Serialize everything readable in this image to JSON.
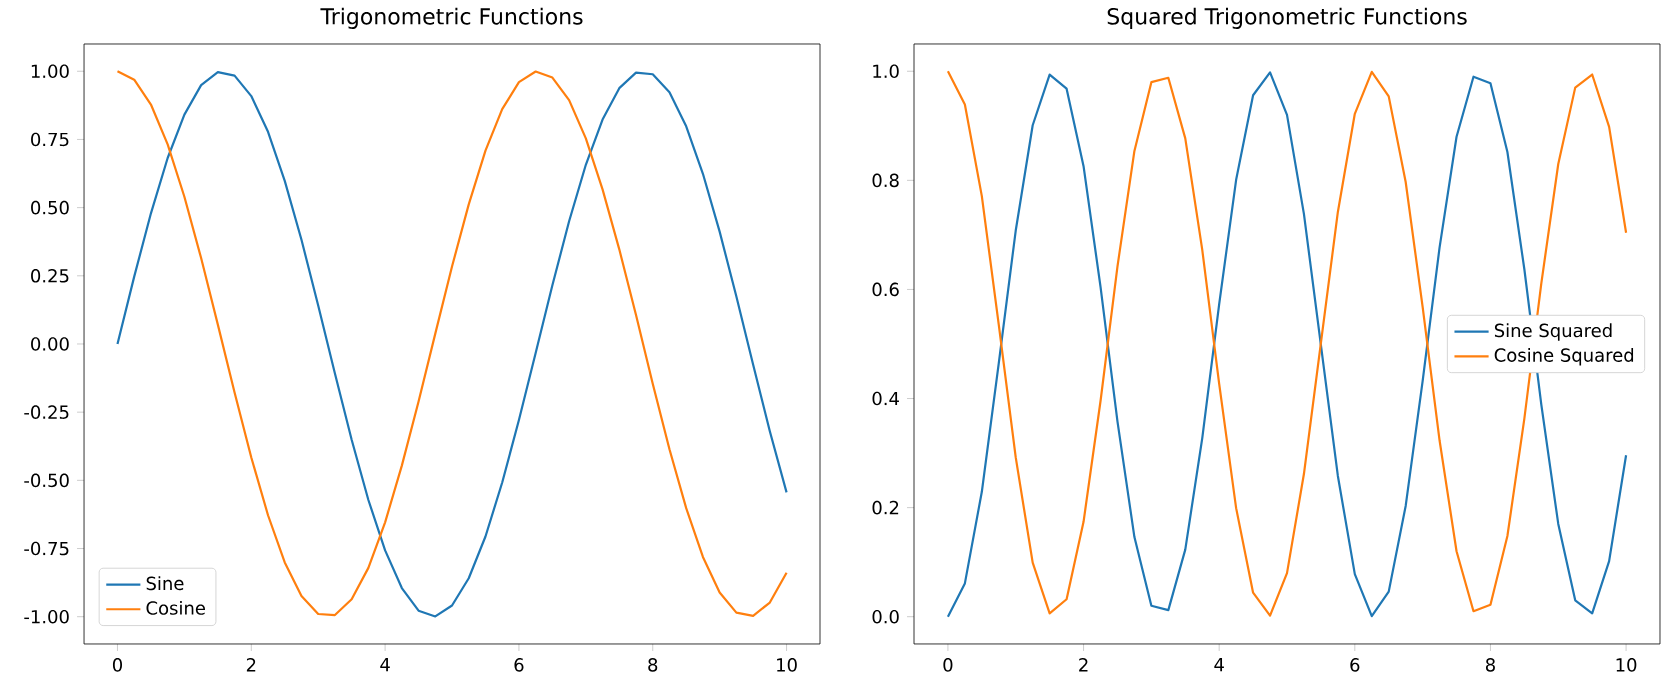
{
  "chart_data": [
    {
      "type": "line",
      "title": "Trigonometric Functions",
      "x": [
        0,
        0.25,
        0.5,
        0.75,
        1,
        1.25,
        1.5,
        1.75,
        2,
        2.25,
        2.5,
        2.75,
        3,
        3.25,
        3.5,
        3.75,
        4,
        4.25,
        4.5,
        4.75,
        5,
        5.25,
        5.5,
        5.75,
        6,
        6.25,
        6.5,
        6.75,
        7,
        7.25,
        7.5,
        7.75,
        8,
        8.25,
        8.5,
        8.75,
        9,
        9.25,
        9.5,
        9.75,
        10
      ],
      "series": [
        {
          "name": "Sine",
          "color": "#1f77b4",
          "values": [
            0,
            0.247,
            0.479,
            0.682,
            0.841,
            0.949,
            0.997,
            0.984,
            0.909,
            0.778,
            0.598,
            0.382,
            0.141,
            -0.108,
            -0.351,
            -0.572,
            -0.757,
            -0.895,
            -0.978,
            -0.999,
            -0.959,
            -0.859,
            -0.706,
            -0.508,
            -0.279,
            -0.033,
            0.215,
            0.45,
            0.657,
            0.823,
            0.938,
            0.995,
            0.989,
            0.923,
            0.798,
            0.624,
            0.412,
            0.174,
            -0.075,
            -0.32,
            -0.544
          ]
        },
        {
          "name": "Cosine",
          "color": "#ff7f0e",
          "values": [
            1,
            0.969,
            0.878,
            0.732,
            0.54,
            0.315,
            0.071,
            -0.178,
            -0.416,
            -0.628,
            -0.801,
            -0.924,
            -0.99,
            -0.994,
            -0.936,
            -0.821,
            -0.654,
            -0.446,
            -0.211,
            0.038,
            0.284,
            0.512,
            0.709,
            0.861,
            0.96,
            0.999,
            0.977,
            0.894,
            0.754,
            0.567,
            0.347,
            0.106,
            -0.146,
            -0.386,
            -0.602,
            -0.781,
            -0.911,
            -0.985,
            -0.997,
            -0.948,
            -0.839
          ]
        }
      ],
      "xlim": [
        -0.5,
        10.5
      ],
      "ylim": [
        -1.1,
        1.1
      ],
      "xticks": [
        0,
        2,
        4,
        6,
        8,
        10
      ],
      "yticks": [
        {
          "value": -1,
          "label": "-1.00"
        },
        {
          "value": -0.75,
          "label": "-0.75"
        },
        {
          "value": -0.5,
          "label": "-0.50"
        },
        {
          "value": -0.25,
          "label": "-0.25"
        },
        {
          "value": 0,
          "label": "0.00"
        },
        {
          "value": 0.25,
          "label": "0.25"
        },
        {
          "value": 0.5,
          "label": "0.50"
        },
        {
          "value": 0.75,
          "label": "0.75"
        },
        {
          "value": 1,
          "label": "1.00"
        }
      ],
      "legend": "bottom left"
    },
    {
      "type": "line",
      "title": "Squared Trigonometric Functions",
      "x": [
        0,
        0.25,
        0.5,
        0.75,
        1,
        1.25,
        1.5,
        1.75,
        2,
        2.25,
        2.5,
        2.75,
        3,
        3.25,
        3.5,
        3.75,
        4,
        4.25,
        4.5,
        4.75,
        5,
        5.25,
        5.5,
        5.75,
        6,
        6.25,
        6.5,
        6.75,
        7,
        7.25,
        7.5,
        7.75,
        8,
        8.25,
        8.5,
        8.75,
        9,
        9.25,
        9.5,
        9.75,
        10
      ],
      "series": [
        {
          "name": "Sine Squared",
          "color": "#1f77b4",
          "values": [
            0,
            0.061,
            0.229,
            0.465,
            0.708,
            0.901,
            0.994,
            0.968,
            0.826,
            0.605,
            0.358,
            0.146,
            0.02,
            0.012,
            0.123,
            0.327,
            0.573,
            0.801,
            0.956,
            0.998,
            0.92,
            0.738,
            0.498,
            0.258,
            0.078,
            0.001,
            0.046,
            0.203,
            0.432,
            0.677,
            0.88,
            0.99,
            0.978,
            0.852,
            0.637,
            0.389,
            0.17,
            0.03,
            0.006,
            0.102,
            0.296
          ]
        },
        {
          "name": "Cosine Squared",
          "color": "#ff7f0e",
          "values": [
            1,
            0.939,
            0.771,
            0.535,
            0.292,
            0.099,
            0.006,
            0.032,
            0.174,
            0.395,
            0.642,
            0.854,
            0.98,
            0.988,
            0.877,
            0.673,
            0.427,
            0.199,
            0.044,
            0.002,
            0.08,
            0.262,
            0.502,
            0.742,
            0.922,
            0.999,
            0.954,
            0.797,
            0.568,
            0.323,
            0.12,
            0.01,
            0.022,
            0.148,
            0.363,
            0.611,
            0.83,
            0.97,
            0.994,
            0.898,
            0.704
          ]
        }
      ],
      "xlim": [
        -0.5,
        10.5
      ],
      "ylim": [
        -0.05,
        1.05
      ],
      "xticks": [
        0,
        2,
        4,
        6,
        8,
        10
      ],
      "yticks": [
        {
          "value": 0,
          "label": "0.0"
        },
        {
          "value": 0.2,
          "label": "0.2"
        },
        {
          "value": 0.4,
          "label": "0.4"
        },
        {
          "value": 0.6,
          "label": "0.6"
        },
        {
          "value": 0.8,
          "label": "0.8"
        },
        {
          "value": 1,
          "label": "1.0"
        }
      ],
      "legend": "right"
    }
  ]
}
